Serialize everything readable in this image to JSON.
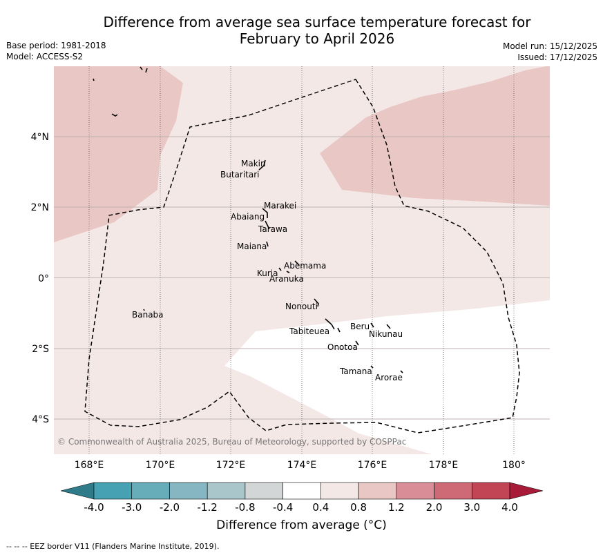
{
  "header": {
    "title_line1": "Difference from average sea surface temperature forecast for",
    "title_line2": "February to April 2026",
    "base_period": "Base period: 1981-2018",
    "model": "Model: ACCESS-S2",
    "model_run": "Model run: 15/12/2025",
    "issued": "Issued: 17/12/2025"
  },
  "map": {
    "lon_ticks": [
      "168°E",
      "170°E",
      "172°E",
      "174°E",
      "176°E",
      "178°E",
      "180°"
    ],
    "lat_ticks": [
      "4°N",
      "2°N",
      "0°",
      "2°S",
      "4°S"
    ],
    "copyright": "© Commonwealth of Australia 2025, Bureau of Meteorology, supported by COSPPac",
    "places": [
      {
        "name": "Makin"
      },
      {
        "name": "Butaritari"
      },
      {
        "name": "Marakei"
      },
      {
        "name": "Abaiang"
      },
      {
        "name": "Tarawa"
      },
      {
        "name": "Maiana"
      },
      {
        "name": "Abemama"
      },
      {
        "name": "Kuria"
      },
      {
        "name": "Aranuka"
      },
      {
        "name": "Nonouti"
      },
      {
        "name": "Banaba"
      },
      {
        "name": "Beru"
      },
      {
        "name": "Tabiteuea"
      },
      {
        "name": "Nikunau"
      },
      {
        "name": "Onotoa"
      },
      {
        "name": "Tamana"
      },
      {
        "name": "Arorae"
      }
    ]
  },
  "colorbar": {
    "ticks": [
      "-4.0",
      "-3.0",
      "-2.0",
      "-1.2",
      "-0.8",
      "-0.4",
      "0.4",
      "0.8",
      "1.2",
      "2.0",
      "3.0",
      "4.0"
    ],
    "colors": [
      "#2f7b8a",
      "#46a2b2",
      "#67adb9",
      "#86b6c1",
      "#a9c7cb",
      "#d2d6d7",
      "#ffffff",
      "#f4e8e7",
      "#e8c7c4",
      "#d98e97",
      "#cd6a76",
      "#c14555",
      "#a71a38"
    ],
    "label": "Difference from average (°C)"
  },
  "footnote": "--  --  -- EEZ border V11 (Flanders Marine Institute, 2019)."
}
